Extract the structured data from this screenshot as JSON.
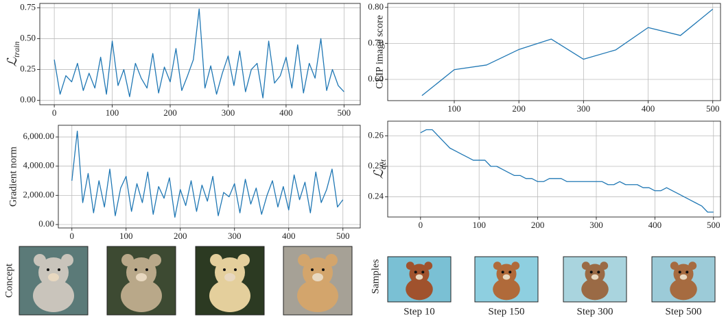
{
  "chart_data": [
    {
      "type": "line",
      "y_label": {
        "symbol": "ℒ",
        "subscript": "train"
      },
      "x": [
        0,
        10,
        20,
        30,
        40,
        50,
        60,
        70,
        80,
        90,
        100,
        110,
        120,
        130,
        140,
        150,
        160,
        170,
        180,
        190,
        200,
        210,
        220,
        230,
        240,
        250,
        260,
        270,
        280,
        290,
        300,
        310,
        320,
        330,
        340,
        350,
        360,
        370,
        380,
        390,
        400,
        410,
        420,
        430,
        440,
        450,
        460,
        470,
        480,
        490,
        500
      ],
      "series": [
        {
          "color": "#1f77b4",
          "values": [
            0.33,
            0.05,
            0.2,
            0.15,
            0.3,
            0.08,
            0.22,
            0.1,
            0.35,
            0.05,
            0.48,
            0.12,
            0.25,
            0.03,
            0.3,
            0.18,
            0.1,
            0.38,
            0.06,
            0.27,
            0.15,
            0.42,
            0.08,
            0.2,
            0.33,
            0.74,
            0.1,
            0.28,
            0.05,
            0.22,
            0.36,
            0.12,
            0.4,
            0.07,
            0.25,
            0.3,
            0.02,
            0.48,
            0.14,
            0.2,
            0.35,
            0.1,
            0.45,
            0.06,
            0.3,
            0.18,
            0.5,
            0.08,
            0.25,
            0.12,
            0.07
          ]
        }
      ],
      "xlim": [
        -25,
        528
      ],
      "ylim": [
        -0.035,
        0.785
      ],
      "xticks": [
        0,
        100,
        200,
        300,
        400,
        500
      ],
      "yticks": [
        {
          "value": 0,
          "label": "0.00"
        },
        {
          "value": 0.25,
          "label": "0.25"
        },
        {
          "value": 0.5,
          "label": "0.50"
        },
        {
          "value": 0.75,
          "label": "0.75"
        }
      ],
      "grid": true
    },
    {
      "type": "line",
      "y_label": "Gradient norm",
      "x": [
        0,
        10,
        20,
        30,
        40,
        50,
        60,
        70,
        80,
        90,
        100,
        110,
        120,
        130,
        140,
        150,
        160,
        170,
        180,
        190,
        200,
        210,
        220,
        230,
        240,
        250,
        260,
        270,
        280,
        290,
        300,
        310,
        320,
        330,
        340,
        350,
        360,
        370,
        380,
        390,
        400,
        410,
        420,
        430,
        440,
        450,
        460,
        470,
        480,
        490,
        500
      ],
      "series": [
        {
          "color": "#1f77b4",
          "values": [
            3000,
            6400,
            1500,
            3500,
            800,
            3000,
            1200,
            3800,
            600,
            2500,
            3300,
            900,
            2800,
            1500,
            3600,
            700,
            2600,
            1800,
            3200,
            500,
            2400,
            1300,
            3000,
            900,
            2700,
            1600,
            3300,
            600,
            2200,
            1900,
            2800,
            800,
            3100,
            1400,
            2500,
            700,
            2000,
            3000,
            1200,
            2600,
            1000,
            3400,
            1700,
            2900,
            800,
            3600,
            1500,
            2400,
            3800,
            1200,
            1700
          ]
        }
      ],
      "xlim": [
        -25,
        532
      ],
      "ylim": [
        -234,
        6800
      ],
      "xticks": [
        0,
        100,
        200,
        300,
        400,
        500
      ],
      "yticks": [
        {
          "value": 0,
          "label": "0.00"
        },
        {
          "value": 2000,
          "label": "2,000.00"
        },
        {
          "value": 4000,
          "label": "4,000.00"
        },
        {
          "value": 6000,
          "label": "6,000.00"
        }
      ],
      "grid": true
    },
    {
      "type": "line",
      "y_label": "CLIP image score",
      "x": [
        50,
        100,
        150,
        200,
        250,
        300,
        350,
        400,
        450,
        500
      ],
      "series": [
        {
          "color": "#1f77b4",
          "values": [
            0.555,
            0.627,
            0.64,
            0.683,
            0.712,
            0.656,
            0.682,
            0.744,
            0.722,
            0.795
          ]
        }
      ],
      "xlim": [
        -3,
        512
      ],
      "ylim": [
        0.541,
        0.811
      ],
      "xticks": [
        100,
        200,
        300,
        400,
        500
      ],
      "yticks": [
        {
          "value": 0.6,
          "label": "0.60"
        },
        {
          "value": 0.7,
          "label": "0.70"
        },
        {
          "value": 0.8,
          "label": "0.80"
        }
      ],
      "grid": true
    },
    {
      "type": "line",
      "y_label": {
        "symbol": "ℒ",
        "subscript": "det"
      },
      "x": [
        0,
        10,
        20,
        30,
        40,
        50,
        60,
        70,
        80,
        90,
        100,
        110,
        120,
        130,
        140,
        150,
        160,
        170,
        180,
        190,
        200,
        210,
        220,
        230,
        240,
        250,
        260,
        270,
        280,
        290,
        300,
        310,
        320,
        330,
        340,
        350,
        360,
        370,
        380,
        390,
        400,
        410,
        420,
        430,
        440,
        450,
        460,
        470,
        480,
        490,
        500
      ],
      "series": [
        {
          "color": "#1f77b4",
          "values": [
            0.261,
            0.262,
            0.262,
            0.26,
            0.258,
            0.256,
            0.255,
            0.254,
            0.253,
            0.252,
            0.252,
            0.252,
            0.25,
            0.25,
            0.249,
            0.248,
            0.247,
            0.247,
            0.246,
            0.246,
            0.245,
            0.245,
            0.246,
            0.246,
            0.246,
            0.245,
            0.245,
            0.245,
            0.245,
            0.245,
            0.245,
            0.245,
            0.244,
            0.244,
            0.245,
            0.244,
            0.244,
            0.244,
            0.243,
            0.243,
            0.242,
            0.242,
            0.243,
            0.242,
            0.241,
            0.24,
            0.239,
            0.238,
            0.237,
            0.235,
            0.235
          ]
        }
      ],
      "xlim": [
        -56,
        512
      ],
      "ylim": [
        0.2334,
        0.2648
      ],
      "xticks": [
        0,
        100,
        200,
        300,
        400,
        500
      ],
      "yticks": [
        0.24,
        0.25,
        0.26
      ],
      "grid": true
    }
  ],
  "concept_row": {
    "label": "Concept"
  },
  "samples_row": {
    "label": "Samples",
    "captions": [
      "Step 10",
      "Step 150",
      "Step 300",
      "Step 500"
    ]
  }
}
